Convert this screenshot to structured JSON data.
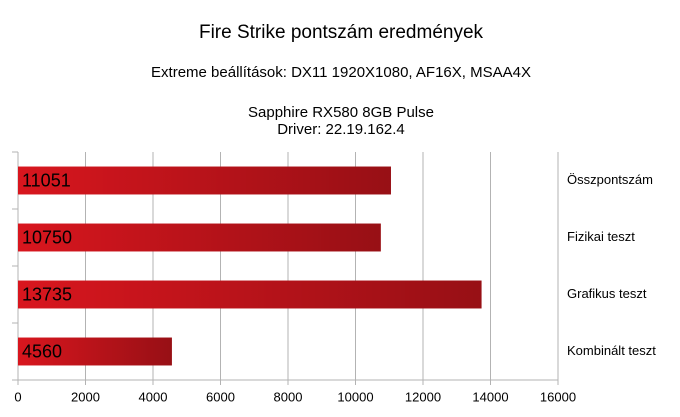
{
  "chart_data": {
    "type": "hbar",
    "title": "Fire Strike pontszám eredmények",
    "subtitle": [
      "Extreme beállítások: DX11 1920X1080, AF16X, MSAA4X",
      "Sapphire RX580 8GB Pulse",
      "Driver: 22.19.162.4"
    ],
    "categories": [
      "Összpontszám",
      "Fizikai teszt",
      "Grafikus teszt",
      "Kombinált teszt"
    ],
    "values": [
      11051,
      10750,
      13735,
      4560
    ],
    "color": "#d8161e",
    "xlim": [
      0,
      16000
    ],
    "xticks": [
      0,
      2000,
      4000,
      6000,
      8000,
      10000,
      12000,
      14000,
      16000
    ],
    "grid": true
  }
}
